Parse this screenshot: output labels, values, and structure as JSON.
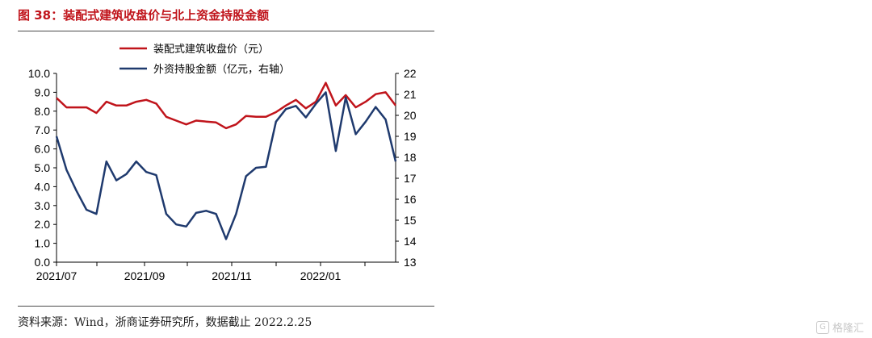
{
  "figure": {
    "title": "图 38：装配式建筑收盘价与北上资金持股金额",
    "source": "资料来源：Wind，浙商证券研究所，数据截止 2022.2.25",
    "watermark": "格隆汇"
  },
  "colors": {
    "title": "#c0141b",
    "series1": "#c0141b",
    "series2": "#1f3a6e",
    "axis": "#000000"
  },
  "icons": {
    "watermark_logo": "gelonghui-logo-icon"
  },
  "chart_data": {
    "type": "line",
    "x_ticks": [
      "2021/07",
      "2021/09",
      "2021/11",
      "2022/01"
    ],
    "legend": {
      "placement": "top-center"
    },
    "grid": false,
    "left_axis": {
      "ylim": [
        0.0,
        10.0
      ],
      "ticks": [
        "0.0",
        "1.0",
        "2.0",
        "3.0",
        "4.0",
        "5.0",
        "6.0",
        "7.0",
        "8.0",
        "9.0",
        "10.0"
      ]
    },
    "right_axis": {
      "ylim": [
        13,
        22
      ],
      "ticks": [
        "13",
        "14",
        "15",
        "16",
        "17",
        "18",
        "19",
        "20",
        "21",
        "22"
      ]
    },
    "series": [
      {
        "name": "装配式建筑收盘价（元）",
        "axis": "left",
        "values": [
          8.7,
          8.2,
          8.2,
          8.2,
          7.9,
          8.5,
          8.3,
          8.3,
          8.5,
          8.6,
          8.4,
          7.7,
          7.5,
          7.3,
          7.5,
          7.45,
          7.4,
          7.1,
          7.3,
          7.75,
          7.7,
          7.7,
          7.95,
          8.3,
          8.6,
          8.15,
          8.5,
          9.5,
          8.3,
          8.85,
          8.2,
          8.5,
          8.9,
          9.0,
          8.3
        ]
      },
      {
        "name": "外资持股金额（亿元，右轴）",
        "axis": "right",
        "values": [
          19.0,
          17.4,
          16.4,
          15.5,
          15.3,
          17.8,
          16.9,
          17.2,
          17.8,
          17.3,
          17.15,
          15.3,
          14.8,
          14.7,
          15.35,
          15.45,
          15.3,
          14.1,
          15.3,
          17.1,
          17.5,
          17.55,
          19.7,
          20.3,
          20.45,
          19.9,
          20.55,
          21.1,
          18.3,
          20.85,
          19.1,
          19.7,
          20.4,
          19.8,
          17.8
        ]
      }
    ]
  }
}
